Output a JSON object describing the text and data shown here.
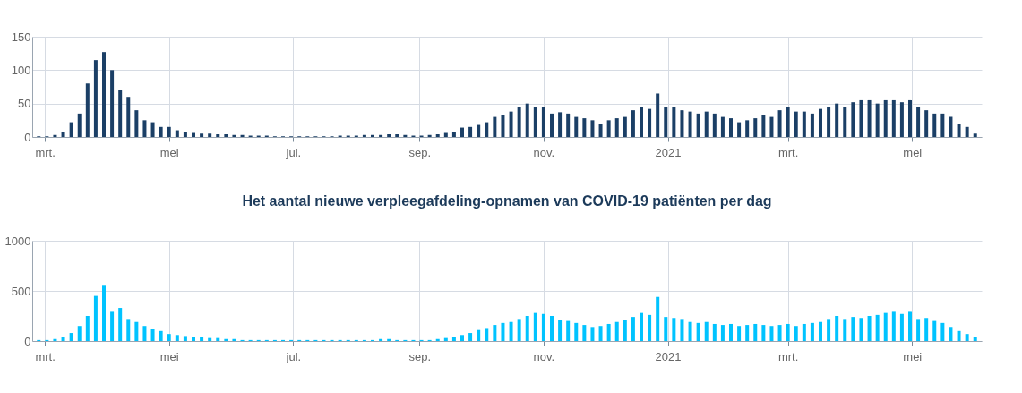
{
  "chart_data": [
    {
      "type": "bar",
      "x": [
        "2020-02-27",
        "2020-03-02",
        "2020-03-06",
        "2020-03-10",
        "2020-03-14",
        "2020-03-18",
        "2020-03-22",
        "2020-03-26",
        "2020-03-30",
        "2020-04-03",
        "2020-04-07",
        "2020-04-11",
        "2020-04-15",
        "2020-04-19",
        "2020-04-23",
        "2020-04-27",
        "2020-05-01",
        "2020-05-05",
        "2020-05-09",
        "2020-05-13",
        "2020-05-17",
        "2020-05-21",
        "2020-05-25",
        "2020-05-29",
        "2020-06-02",
        "2020-06-06",
        "2020-06-10",
        "2020-06-14",
        "2020-06-18",
        "2020-06-22",
        "2020-06-26",
        "2020-06-30",
        "2020-07-04",
        "2020-07-08",
        "2020-07-12",
        "2020-07-16",
        "2020-07-20",
        "2020-07-24",
        "2020-07-28",
        "2020-08-01",
        "2020-08-05",
        "2020-08-09",
        "2020-08-13",
        "2020-08-17",
        "2020-08-21",
        "2020-08-25",
        "2020-08-29",
        "2020-09-02",
        "2020-09-06",
        "2020-09-10",
        "2020-09-14",
        "2020-09-18",
        "2020-09-22",
        "2020-09-26",
        "2020-09-30",
        "2020-10-04",
        "2020-10-08",
        "2020-10-12",
        "2020-10-16",
        "2020-10-20",
        "2020-10-24",
        "2020-10-28",
        "2020-11-01",
        "2020-11-05",
        "2020-11-09",
        "2020-11-13",
        "2020-11-17",
        "2020-11-21",
        "2020-11-25",
        "2020-11-29",
        "2020-12-03",
        "2020-12-07",
        "2020-12-11",
        "2020-12-15",
        "2020-12-19",
        "2020-12-23",
        "2020-12-27",
        "2020-12-31",
        "2021-01-04",
        "2021-01-08",
        "2021-01-12",
        "2021-01-16",
        "2021-01-20",
        "2021-01-24",
        "2021-01-28",
        "2021-02-01",
        "2021-02-05",
        "2021-02-09",
        "2021-02-13",
        "2021-02-17",
        "2021-02-21",
        "2021-02-25",
        "2021-03-01",
        "2021-03-05",
        "2021-03-09",
        "2021-03-13",
        "2021-03-17",
        "2021-03-21",
        "2021-03-25",
        "2021-03-29",
        "2021-04-02",
        "2021-04-06",
        "2021-04-10",
        "2021-04-14",
        "2021-04-18",
        "2021-04-22",
        "2021-04-26",
        "2021-04-30",
        "2021-05-04",
        "2021-05-08",
        "2021-05-12",
        "2021-05-16",
        "2021-05-20",
        "2021-05-24",
        "2021-05-28",
        "2021-06-01"
      ],
      "series": [
        {
          "color": "#1b3f66",
          "values": [
            1,
            1,
            3,
            8,
            22,
            35,
            80,
            115,
            127,
            100,
            70,
            60,
            40,
            25,
            22,
            15,
            15,
            10,
            7,
            6,
            5,
            5,
            4,
            4,
            3,
            3,
            2,
            2,
            2,
            1,
            1,
            1,
            1,
            1,
            1,
            1,
            1,
            2,
            2,
            2,
            3,
            3,
            3,
            4,
            4,
            3,
            2,
            2,
            3,
            4,
            6,
            8,
            14,
            15,
            18,
            22,
            30,
            33,
            38,
            45,
            50,
            45,
            45,
            35,
            37,
            35,
            30,
            28,
            25,
            20,
            25,
            28,
            30,
            40,
            45,
            42,
            65,
            45,
            45,
            40,
            38,
            35,
            38,
            35,
            30,
            28,
            22,
            25,
            28,
            33,
            30,
            40,
            45,
            38,
            38,
            35,
            42,
            45,
            50,
            45,
            52,
            55,
            55,
            50,
            55,
            55,
            52,
            55,
            45,
            40,
            35,
            35,
            30,
            20,
            15,
            5
          ]
        }
      ],
      "xlim": [
        "2020-02-26",
        "2021-06-02"
      ],
      "xticks": [
        {
          "value": "2020-03-01",
          "label": "mrt."
        },
        {
          "value": "2020-05-01",
          "label": "mei"
        },
        {
          "value": "2020-07-01",
          "label": "jul."
        },
        {
          "value": "2020-09-01",
          "label": "sep."
        },
        {
          "value": "2020-11-01",
          "label": "nov."
        },
        {
          "value": "2021-01-01",
          "label": "2021"
        },
        {
          "value": "2021-03-01",
          "label": "mrt."
        },
        {
          "value": "2021-05-01",
          "label": "mei"
        }
      ],
      "ylim": [
        0,
        150
      ],
      "yticks": [
        0,
        50,
        100,
        150
      ],
      "grid": true
    },
    {
      "type": "bar",
      "title": "Het aantal nieuwe verpleegafdeling-opnamen van COVID-19 patiënten per dag",
      "x": [
        "2020-02-27",
        "2020-03-02",
        "2020-03-06",
        "2020-03-10",
        "2020-03-14",
        "2020-03-18",
        "2020-03-22",
        "2020-03-26",
        "2020-03-30",
        "2020-04-03",
        "2020-04-07",
        "2020-04-11",
        "2020-04-15",
        "2020-04-19",
        "2020-04-23",
        "2020-04-27",
        "2020-05-01",
        "2020-05-05",
        "2020-05-09",
        "2020-05-13",
        "2020-05-17",
        "2020-05-21",
        "2020-05-25",
        "2020-05-29",
        "2020-06-02",
        "2020-06-06",
        "2020-06-10",
        "2020-06-14",
        "2020-06-18",
        "2020-06-22",
        "2020-06-26",
        "2020-06-30",
        "2020-07-04",
        "2020-07-08",
        "2020-07-12",
        "2020-07-16",
        "2020-07-20",
        "2020-07-24",
        "2020-07-28",
        "2020-08-01",
        "2020-08-05",
        "2020-08-09",
        "2020-08-13",
        "2020-08-17",
        "2020-08-21",
        "2020-08-25",
        "2020-08-29",
        "2020-09-02",
        "2020-09-06",
        "2020-09-10",
        "2020-09-14",
        "2020-09-18",
        "2020-09-22",
        "2020-09-26",
        "2020-09-30",
        "2020-10-04",
        "2020-10-08",
        "2020-10-12",
        "2020-10-16",
        "2020-10-20",
        "2020-10-24",
        "2020-10-28",
        "2020-11-01",
        "2020-11-05",
        "2020-11-09",
        "2020-11-13",
        "2020-11-17",
        "2020-11-21",
        "2020-11-25",
        "2020-11-29",
        "2020-12-03",
        "2020-12-07",
        "2020-12-11",
        "2020-12-15",
        "2020-12-19",
        "2020-12-23",
        "2020-12-27",
        "2020-12-31",
        "2021-01-04",
        "2021-01-08",
        "2021-01-12",
        "2021-01-16",
        "2021-01-20",
        "2021-01-24",
        "2021-01-28",
        "2021-02-01",
        "2021-02-05",
        "2021-02-09",
        "2021-02-13",
        "2021-02-17",
        "2021-02-21",
        "2021-02-25",
        "2021-03-01",
        "2021-03-05",
        "2021-03-09",
        "2021-03-13",
        "2021-03-17",
        "2021-03-21",
        "2021-03-25",
        "2021-03-29",
        "2021-04-02",
        "2021-04-06",
        "2021-04-10",
        "2021-04-14",
        "2021-04-18",
        "2021-04-22",
        "2021-04-26",
        "2021-04-30",
        "2021-05-04",
        "2021-05-08",
        "2021-05-12",
        "2021-05-16",
        "2021-05-20",
        "2021-05-24",
        "2021-05-28",
        "2021-06-01"
      ],
      "series": [
        {
          "color": "#00c3ff",
          "values": [
            10,
            10,
            20,
            40,
            80,
            150,
            250,
            450,
            560,
            300,
            330,
            220,
            190,
            150,
            120,
            100,
            70,
            60,
            50,
            40,
            40,
            30,
            30,
            20,
            20,
            10,
            10,
            10,
            10,
            10,
            10,
            10,
            10,
            10,
            10,
            10,
            10,
            10,
            10,
            10,
            10,
            10,
            20,
            20,
            10,
            10,
            10,
            10,
            10,
            20,
            30,
            40,
            60,
            80,
            110,
            130,
            160,
            180,
            190,
            220,
            250,
            280,
            270,
            250,
            210,
            200,
            180,
            160,
            140,
            150,
            170,
            190,
            210,
            240,
            280,
            260,
            440,
            240,
            230,
            220,
            190,
            180,
            190,
            170,
            160,
            170,
            150,
            160,
            170,
            160,
            150,
            160,
            170,
            150,
            170,
            180,
            190,
            220,
            250,
            220,
            240,
            230,
            250,
            260,
            280,
            300,
            270,
            300,
            220,
            230,
            200,
            180,
            140,
            100,
            70,
            40
          ]
        }
      ],
      "xlim": [
        "2020-02-26",
        "2021-06-02"
      ],
      "xticks": [
        {
          "value": "2020-03-01",
          "label": "mrt."
        },
        {
          "value": "2020-05-01",
          "label": "mei"
        },
        {
          "value": "2020-07-01",
          "label": "jul."
        },
        {
          "value": "2020-09-01",
          "label": "sep."
        },
        {
          "value": "2020-11-01",
          "label": "nov."
        },
        {
          "value": "2021-01-01",
          "label": "2021"
        },
        {
          "value": "2021-03-01",
          "label": "mrt."
        },
        {
          "value": "2021-05-01",
          "label": "mei"
        }
      ],
      "ylim": [
        0,
        1000
      ],
      "yticks": [
        0,
        500,
        1000
      ],
      "grid": true
    }
  ]
}
